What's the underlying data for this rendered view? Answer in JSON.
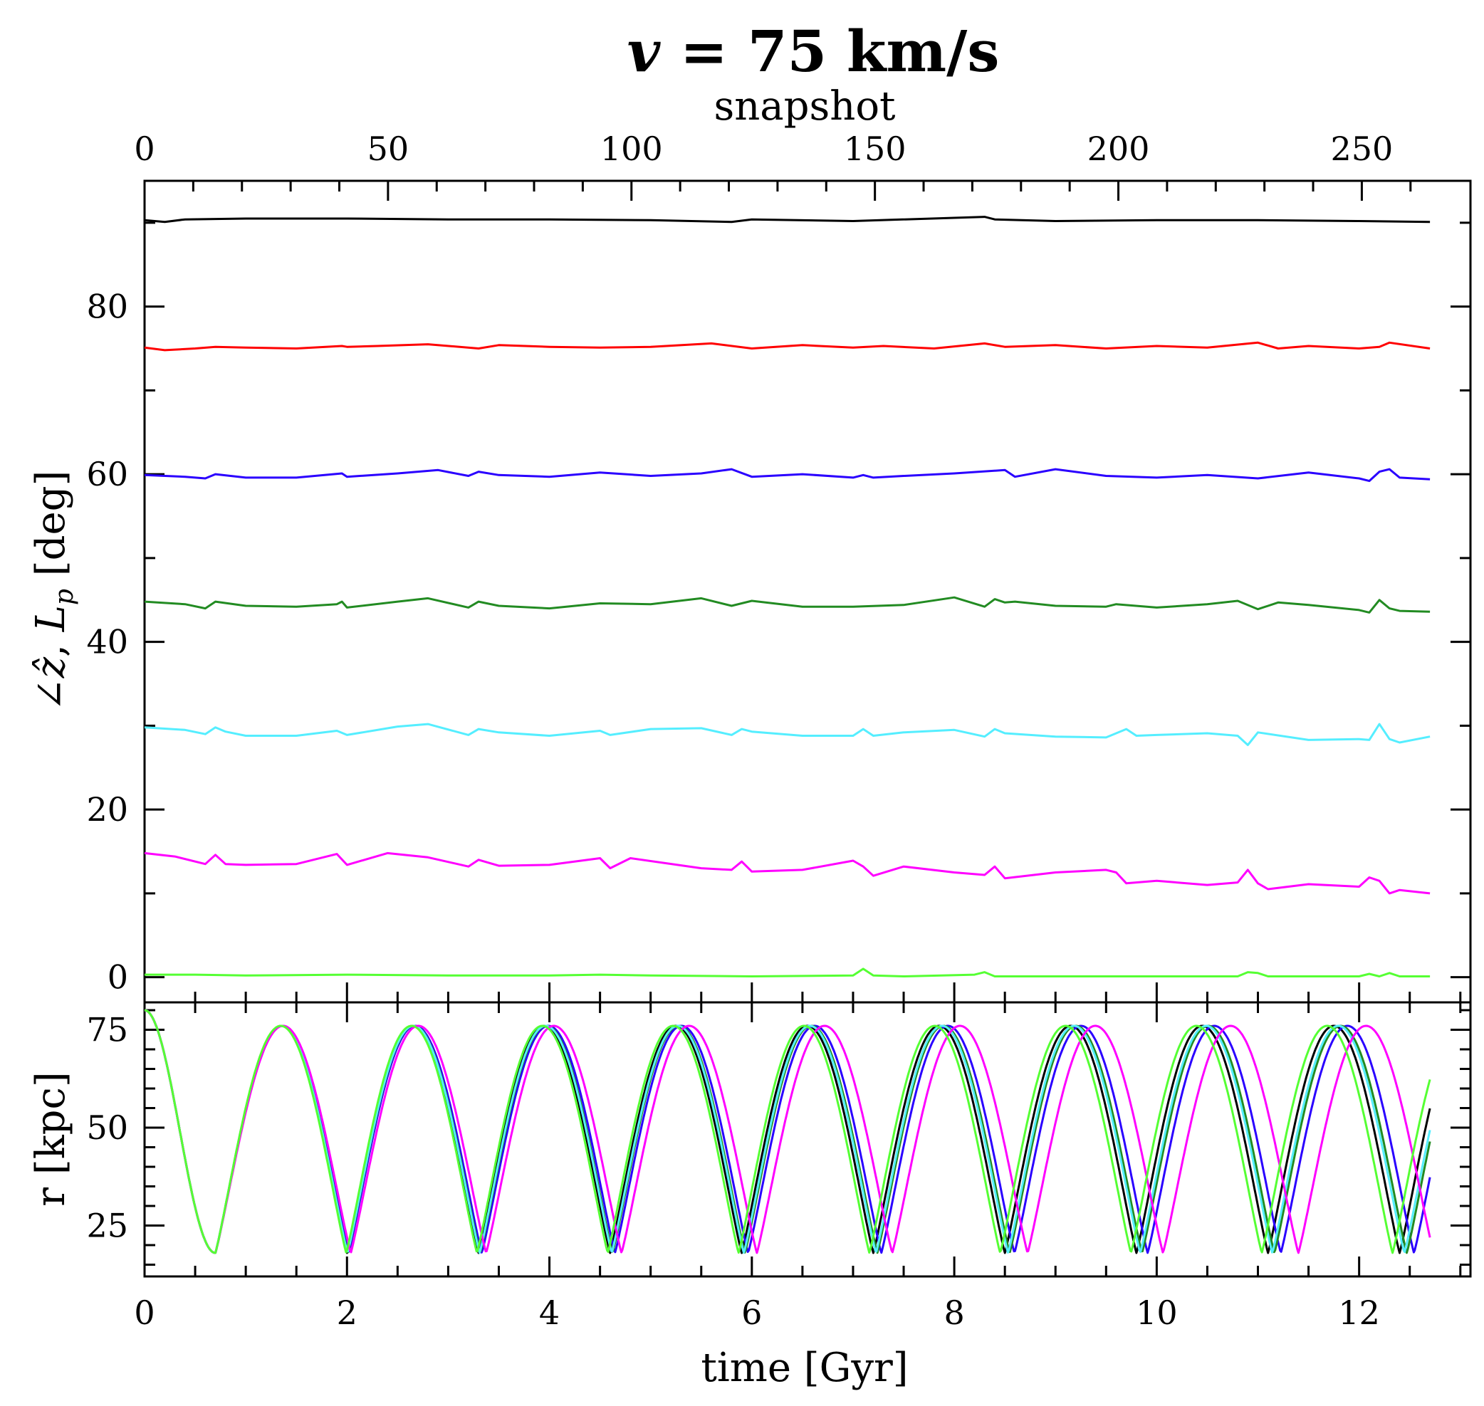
{
  "chart_data": [
    {
      "panel": "top",
      "type": "line",
      "title": "v = 75 km/s",
      "title_parts": {
        "symbol": "v",
        "rest": " = 75 km/s"
      },
      "ylabel": "∠ẑ, L_p [deg]",
      "ylabel_parts": {
        "angle": "∠",
        "zhat": "ẑ",
        "comma": ", ",
        "L": "L",
        "sub": "p",
        "unit": " [deg]"
      },
      "xlabel_top": "snapshot",
      "xlim": [
        0,
        13.1
      ],
      "ylim": [
        -3,
        95
      ],
      "snapshot_range": [
        0,
        264
      ],
      "snapshot_ticks": [
        0,
        50,
        100,
        150,
        200,
        250
      ],
      "y_ticks": [
        0,
        20,
        40,
        60,
        80
      ],
      "grid": false,
      "series": [
        {
          "color": "#000000",
          "x": [
            0,
            0.2,
            0.4,
            1,
            2,
            3,
            4,
            5,
            5.8,
            6,
            7,
            8.3,
            8.4,
            9,
            10,
            11,
            12,
            12.7
          ],
          "y": [
            90.3,
            90.1,
            90.4,
            90.5,
            90.5,
            90.4,
            90.4,
            90.3,
            90.1,
            90.4,
            90.2,
            90.7,
            90.4,
            90.2,
            90.3,
            90.3,
            90.2,
            90.1
          ]
        },
        {
          "color": "#ff0000",
          "x": [
            0,
            0.2,
            0.5,
            0.7,
            1,
            1.5,
            1.95,
            2,
            2.3,
            2.8,
            3.3,
            3.5,
            4,
            4.5,
            5.0,
            5.6,
            6.0,
            6.5,
            7.0,
            7.3,
            7.8,
            8.3,
            8.5,
            9,
            9.5,
            10,
            10.5,
            11.0,
            11.2,
            11.5,
            12.0,
            12.2,
            12.3,
            12.7
          ],
          "y": [
            75.1,
            74.8,
            75.0,
            75.2,
            75.1,
            75.0,
            75.3,
            75.2,
            75.3,
            75.5,
            75.0,
            75.4,
            75.2,
            75.1,
            75.2,
            75.6,
            75.0,
            75.4,
            75.1,
            75.3,
            75.0,
            75.6,
            75.2,
            75.4,
            75.0,
            75.3,
            75.1,
            75.7,
            75.0,
            75.3,
            75.0,
            75.2,
            75.7,
            75.0
          ]
        },
        {
          "color": "#2a00ff",
          "x": [
            0,
            0.4,
            0.6,
            0.7,
            1,
            1.5,
            1.95,
            2,
            2.5,
            2.9,
            3.2,
            3.3,
            3.5,
            4,
            4.5,
            5,
            5.5,
            5.8,
            6.0,
            6.5,
            7.0,
            7.1,
            7.2,
            7.5,
            8.0,
            8.5,
            8.6,
            9.0,
            9.5,
            10.0,
            10.5,
            11.0,
            11.5,
            12.0,
            12.1,
            12.2,
            12.3,
            12.4,
            12.7
          ],
          "y": [
            59.9,
            59.7,
            59.5,
            60.0,
            59.6,
            59.6,
            60.1,
            59.7,
            60.1,
            60.5,
            59.8,
            60.3,
            59.9,
            59.7,
            60.2,
            59.8,
            60.1,
            60.6,
            59.7,
            60.0,
            59.6,
            59.9,
            59.6,
            59.8,
            60.1,
            60.5,
            59.7,
            60.6,
            59.8,
            59.6,
            59.9,
            59.5,
            60.2,
            59.5,
            59.2,
            60.3,
            60.6,
            59.6,
            59.4
          ]
        },
        {
          "color": "#228b22",
          "x": [
            0,
            0.4,
            0.6,
            0.7,
            1,
            1.5,
            1.9,
            1.95,
            2,
            2.5,
            2.8,
            3.2,
            3.3,
            3.5,
            4,
            4.5,
            5,
            5.5,
            5.8,
            6,
            6.5,
            7,
            7.5,
            8,
            8.3,
            8.4,
            8.5,
            8.6,
            9,
            9.5,
            9.6,
            10,
            10.5,
            10.8,
            11,
            11.2,
            11.5,
            12,
            12.1,
            12.2,
            12.3,
            12.4,
            12.7
          ],
          "y": [
            44.8,
            44.5,
            44.0,
            44.8,
            44.3,
            44.2,
            44.5,
            44.8,
            44.1,
            44.8,
            45.2,
            44.1,
            44.8,
            44.3,
            44.0,
            44.6,
            44.5,
            45.2,
            44.3,
            44.9,
            44.2,
            44.2,
            44.4,
            45.3,
            44.2,
            45.1,
            44.7,
            44.8,
            44.3,
            44.2,
            44.5,
            44.1,
            44.5,
            44.9,
            43.9,
            44.7,
            44.4,
            43.8,
            43.5,
            45.0,
            44.0,
            43.7,
            43.6
          ]
        },
        {
          "color": "#55eeff",
          "x": [
            0,
            0.4,
            0.6,
            0.7,
            0.8,
            1,
            1.5,
            1.9,
            2.0,
            2.5,
            2.8,
            3.2,
            3.3,
            3.5,
            4,
            4.5,
            4.6,
            5,
            5.5,
            5.8,
            5.9,
            6,
            6.5,
            7,
            7.1,
            7.2,
            7.5,
            8,
            8.3,
            8.4,
            8.5,
            9,
            9.5,
            9.7,
            9.8,
            10,
            10.5,
            10.8,
            10.9,
            11.0,
            11.5,
            12,
            12.1,
            12.2,
            12.3,
            12.4,
            12.7
          ],
          "y": [
            29.8,
            29.5,
            29.0,
            29.8,
            29.3,
            28.8,
            28.8,
            29.4,
            28.9,
            29.9,
            30.2,
            28.9,
            29.6,
            29.2,
            28.8,
            29.4,
            28.9,
            29.6,
            29.7,
            28.9,
            29.6,
            29.3,
            28.8,
            28.8,
            29.6,
            28.8,
            29.2,
            29.5,
            28.7,
            29.6,
            29.1,
            28.7,
            28.6,
            29.6,
            28.8,
            28.9,
            29.1,
            28.8,
            27.7,
            29.2,
            28.3,
            28.4,
            28.3,
            30.2,
            28.4,
            28.0,
            28.7
          ]
        },
        {
          "color": "#ff00ff",
          "x": [
            0,
            0.3,
            0.6,
            0.7,
            0.8,
            1,
            1.5,
            1.9,
            2.0,
            2.4,
            2.8,
            3.2,
            3.3,
            3.5,
            4,
            4.5,
            4.6,
            4.8,
            5.5,
            5.8,
            5.9,
            6.0,
            6.5,
            7.0,
            7.1,
            7.2,
            7.5,
            8,
            8.3,
            8.4,
            8.5,
            9,
            9.5,
            9.6,
            9.7,
            10,
            10.5,
            10.8,
            10.9,
            11.0,
            11.1,
            11.5,
            12,
            12.1,
            12.2,
            12.3,
            12.4,
            12.7
          ],
          "y": [
            14.8,
            14.4,
            13.5,
            14.6,
            13.5,
            13.4,
            13.5,
            14.7,
            13.4,
            14.8,
            14.3,
            13.2,
            14.0,
            13.3,
            13.4,
            14.2,
            13.0,
            14.2,
            13.0,
            12.8,
            13.8,
            12.6,
            12.8,
            13.9,
            13.2,
            12.1,
            13.2,
            12.5,
            12.2,
            13.2,
            11.8,
            12.5,
            12.8,
            12.5,
            11.2,
            11.5,
            11.0,
            11.3,
            12.8,
            11.2,
            10.5,
            11.1,
            10.8,
            11.9,
            11.5,
            10.0,
            10.4,
            10.0
          ]
        },
        {
          "color": "#55ff33",
          "x": [
            0,
            0.5,
            1,
            2,
            3,
            4,
            4.5,
            5,
            6,
            7,
            7.1,
            7.2,
            7.5,
            8.2,
            8.3,
            8.4,
            9,
            10,
            10.8,
            10.9,
            11.0,
            11.1,
            12,
            12.1,
            12.2,
            12.3,
            12.4,
            12.7
          ],
          "y": [
            0.3,
            0.3,
            0.2,
            0.3,
            0.2,
            0.2,
            0.3,
            0.2,
            0.1,
            0.2,
            1.0,
            0.2,
            0.1,
            0.3,
            0.6,
            0.1,
            0.1,
            0.1,
            0.1,
            0.6,
            0.5,
            0.1,
            0.1,
            0.4,
            0.1,
            0.5,
            0.1,
            0.1
          ]
        }
      ]
    },
    {
      "panel": "bottom",
      "type": "line",
      "xlabel": "time [Gyr]",
      "ylabel": "r [kpc]",
      "xlim": [
        0,
        13.1
      ],
      "ylim": [
        12,
        82
      ],
      "x_ticks": [
        0,
        2,
        4,
        6,
        8,
        10,
        12
      ],
      "y_ticks": [
        25,
        50,
        75
      ],
      "grid": false,
      "oscillation": {
        "r_max": 76,
        "r_min": 18,
        "r_start": 80,
        "period_gyr": 1.3,
        "first_min_gyr": 0.7
      },
      "series": [
        {
          "color": "#000000",
          "phase_shift": 0.0
        },
        {
          "color": "#2a00ff",
          "phase_shift": 0.012
        },
        {
          "color": "#228b22",
          "phase_shift": 0.006
        },
        {
          "color": "#55eeff",
          "phase_shift": 0.004
        },
        {
          "color": "#ff00ff",
          "phase_shift": 0.028
        },
        {
          "color": "#55ff33",
          "phase_shift": -0.006
        }
      ]
    }
  ]
}
